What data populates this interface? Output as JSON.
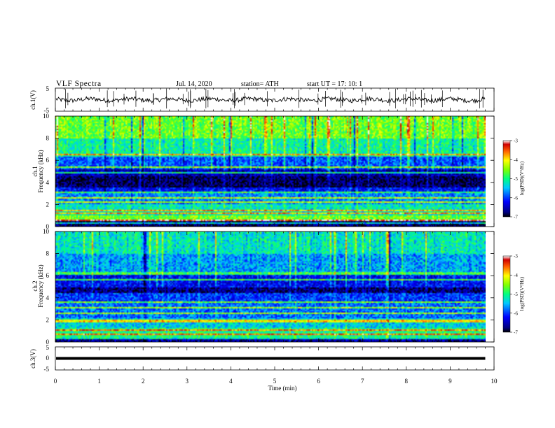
{
  "header": {
    "title": "VLF  Spectra",
    "date": "Jul.  14,  2020",
    "station": "station= ATH",
    "start": "start  UT  =    17: 10: 1"
  },
  "chart_data": [
    {
      "type": "line",
      "panel": "ch.1 waveform",
      "ylabel": "ch.1(V)",
      "ylim": [
        -5,
        5
      ],
      "y_ticks": [
        "5",
        "-5"
      ],
      "xlim": [
        0,
        10
      ],
      "baseline": 0,
      "noise_amplitude": 1.2
    },
    {
      "type": "heatmap",
      "panel": "ch.1 spectrogram",
      "ylabel_lines": [
        "ch.1",
        "Frequency  (kHz)"
      ],
      "ylim": [
        0,
        10
      ],
      "y_ticks": [
        "0",
        "2",
        "4",
        "6",
        "8",
        "10"
      ],
      "xlim": [
        0,
        10
      ],
      "x_data_end": 9.8,
      "colorbar": {
        "label": "log(PSD)(V²/Hz)",
        "range": [
          -7,
          -3
        ],
        "ticks": [
          "-3",
          "-4",
          "-5",
          "-6",
          "-7"
        ],
        "colormap": "jet"
      },
      "bands": [
        {
          "freq": [
            0.0,
            0.5
          ],
          "level": -6.8
        },
        {
          "freq": [
            0.5,
            1.0
          ],
          "level": -4.6
        },
        {
          "freq": [
            1.0,
            2.0
          ],
          "level": -5.2
        },
        {
          "freq": [
            2.0,
            3.0
          ],
          "level": -5.7
        },
        {
          "freq": [
            3.0,
            3.6
          ],
          "level": -6.2
        },
        {
          "freq": [
            3.6,
            4.6
          ],
          "level": -6.8
        },
        {
          "freq": [
            4.6,
            5.2
          ],
          "level": -6.5
        },
        {
          "freq": [
            5.2,
            6.3
          ],
          "level": -5.9
        },
        {
          "freq": [
            6.3,
            8.0
          ],
          "level": -5.1
        },
        {
          "freq": [
            8.0,
            10.0
          ],
          "level": -4.6
        }
      ],
      "tone_lines_khz": [
        0.3,
        0.6,
        1.2,
        1.5,
        2.2,
        2.6,
        3.1,
        4.9,
        5.4,
        6.5
      ]
    },
    {
      "type": "heatmap",
      "panel": "ch.2 spectrogram",
      "ylabel_lines": [
        "ch.2",
        "Frequency  (kHz)"
      ],
      "ylim": [
        0,
        10
      ],
      "y_ticks": [
        "0",
        "2",
        "4",
        "6",
        "8",
        "10"
      ],
      "xlim": [
        0,
        10
      ],
      "x_data_end": 9.8,
      "colorbar": {
        "label": "log(PSD)(V²/Hz)",
        "range": [
          -7,
          -3
        ],
        "ticks": [
          "-3",
          "-4",
          "-5",
          "-6",
          "-7"
        ],
        "colormap": "jet"
      },
      "bands": [
        {
          "freq": [
            0.0,
            0.4
          ],
          "level": -6.6
        },
        {
          "freq": [
            0.4,
            1.3
          ],
          "level": -5.0
        },
        {
          "freq": [
            1.3,
            2.1
          ],
          "level": -5.4
        },
        {
          "freq": [
            2.1,
            3.6
          ],
          "level": -5.8
        },
        {
          "freq": [
            3.6,
            4.4
          ],
          "level": -6.0
        },
        {
          "freq": [
            4.4,
            5.0
          ],
          "level": -6.7
        },
        {
          "freq": [
            5.0,
            6.3
          ],
          "level": -6.2
        },
        {
          "freq": [
            6.3,
            8.0
          ],
          "level": -5.6
        },
        {
          "freq": [
            8.0,
            10.0
          ],
          "level": -5.2
        }
      ],
      "tone_lines_khz": [
        0.3,
        0.7,
        1.1,
        1.9,
        2.6,
        3.1,
        3.6,
        5.6,
        6.2
      ]
    },
    {
      "type": "line",
      "panel": "ch.3 waveform",
      "ylabel": "ch.3(V)",
      "ylim": [
        -5,
        5
      ],
      "y_ticks": [
        "5",
        "0",
        "-5"
      ],
      "xlim": [
        0,
        10
      ],
      "value": 0,
      "x_ticks": [
        "0",
        "1",
        "2",
        "3",
        "4",
        "5",
        "6",
        "7",
        "8",
        "9",
        "10"
      ],
      "xlabel": "Time  (min)"
    }
  ]
}
